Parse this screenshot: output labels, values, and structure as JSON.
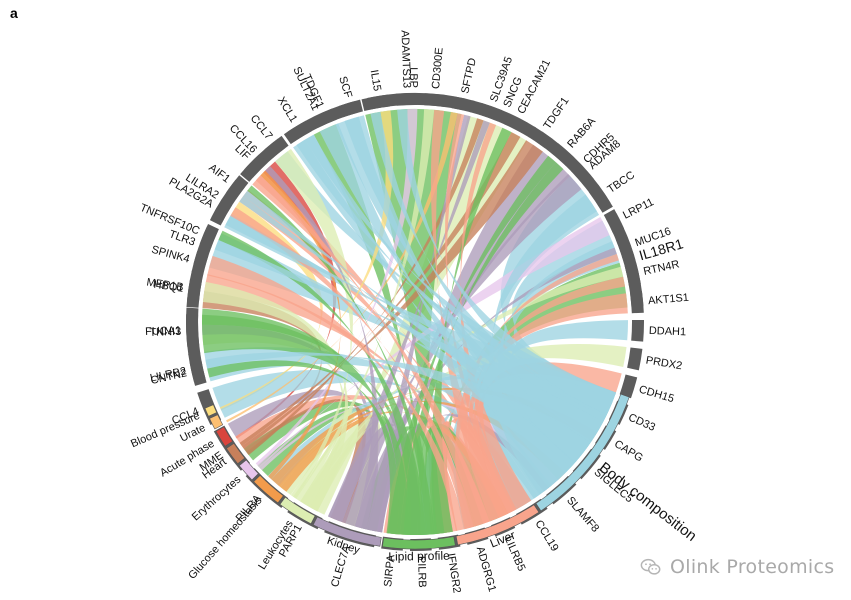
{
  "panel_label": "a",
  "watermark": {
    "text": "Olink Proteomics",
    "icon": "wechat-logo-icon"
  },
  "colors": {
    "protein_segment": "#5c5c5c",
    "Blood pressure": "#fbdd7e",
    "Urate": "#fcbf71",
    "Acute phase": "#d9453d",
    "Heart": "#c7805b",
    "Erythrocytes": "#e7c6ec",
    "Glucose homeostasis": "#f29b4b",
    "Leukocytes": "#dcedb2",
    "Kidney": "#ad9cba",
    "Lipid profile": "#6cbf5f",
    "Liver": "#f8a48c",
    "Body composition": "#9dd4e1"
  },
  "chart_data": {
    "type": "chord",
    "proteins": [
      "IL18R1",
      "CDHR5",
      "SNCG",
      "LBP",
      "SULT2A1",
      "CCL16",
      "LILRA2",
      "TLR3",
      "MEP1B",
      "FUCA1",
      "LILRB2",
      "CCL4",
      "MME",
      "PILRA",
      "PARP1",
      "CLEC7A",
      "SIRPA",
      "PILRB",
      "IFNGR2",
      "ADGRG1",
      "LILRB5",
      "CCL19",
      "SLAMF8",
      "SIGLEC5",
      "CAPG",
      "CD33",
      "CDH15",
      "PRDX2",
      "DDAH1",
      "AKT1S1",
      "RTN4R",
      "MUC16",
      "LRP11",
      "TBCC",
      "ADAM8",
      "RAB6A",
      "TDGF1",
      "CEACAM21",
      "SLC39A5",
      "SFTPD",
      "CD300E",
      "ADAMTS13",
      "IL15",
      "SCF",
      "TDGF1",
      "XCL1",
      "CCL7",
      "LIF",
      "AIF1",
      "PLA2G2A",
      "TNFRSF10C",
      "SPINK4",
      "HBQ1",
      "TNNI3",
      "CNTN2"
    ],
    "protein_weights": [
      4.5,
      4.8,
      3.2,
      4.8,
      3.6,
      2.4,
      2.2,
      1.8,
      1.7,
      1.5,
      1.5,
      1.6,
      2.2,
      2.2,
      1.6,
      2.4,
      1.0,
      1.0,
      1.0,
      1.0,
      1.0,
      1.4,
      1.4,
      1.4,
      1.0,
      1.0,
      1.0,
      1.0,
      1.0,
      1.0,
      1.0,
      1.0,
      1.0,
      1.0,
      1.0,
      1.0,
      1.0,
      1.0,
      1.0,
      1.0,
      1.0,
      1.0,
      1.0,
      1.0,
      1.0,
      1.0,
      1.0,
      1.0,
      1.0,
      1.0,
      1.0,
      1.0,
      1.0,
      2.2,
      0.9
    ],
    "categories": [
      "Body composition",
      "Liver",
      "Lipid profile",
      "Kidney",
      "Leukocytes",
      "Glucose homeostasis",
      "Erythrocytes",
      "Heart",
      "Acute phase",
      "Urate",
      "Blood pressure"
    ],
    "category_weights": [
      10,
      6,
      5,
      4.8,
      2.5,
      2.2,
      1.3,
      1.3,
      1.2,
      0.8,
      0.6
    ]
  }
}
